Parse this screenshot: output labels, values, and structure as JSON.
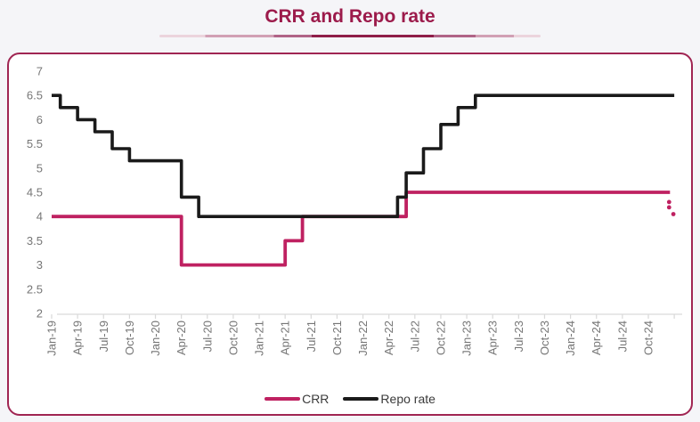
{
  "page": {
    "title": "CRR and Repo rate"
  },
  "colors": {
    "accent": "#9c1b4b",
    "card_border": "#a02552",
    "card_background": "#ffffff",
    "background": "#f5f5f8",
    "crr_line": "#bf2161",
    "repo_line": "#1a1a1a",
    "axis_text": "#767676",
    "axis_line": "#d9d9d9",
    "legend_text": "#3a3a3a"
  },
  "chart_data": {
    "type": "line",
    "title": "CRR and Repo rate",
    "x_axis": {
      "unit": "months since Jan-2019",
      "months_per_tick": 3,
      "label_rotation_deg": 90,
      "tick_labels": [
        "Jan-19",
        "Apr-19",
        "Jul-19",
        "Oct-19",
        "Jan-20",
        "Apr-20",
        "Jul-20",
        "Oct-20",
        "Jan-21",
        "Apr-21",
        "Jul-21",
        "Oct-21",
        "Jan-22",
        "Apr-22",
        "Jul-22",
        "Oct-22",
        "Jan-23",
        "Apr-23",
        "Jul-23",
        "Oct-23",
        "Jan-24",
        "Apr-24",
        "Jul-24",
        "Oct-24"
      ]
    },
    "y_axis": {
      "min": 2,
      "max": 7,
      "tick_step": 0.5,
      "ticks": [
        7,
        6.5,
        6,
        5.5,
        5,
        4.5,
        4,
        3.5,
        3,
        2.5,
        2
      ]
    },
    "series": [
      {
        "name": "CRR",
        "style": "step-after",
        "color_key": "crr_line",
        "end_m": 71.5,
        "points": [
          {
            "month": "Jan-19",
            "m": 0,
            "value": 4.0
          },
          {
            "month": "Apr-20",
            "m": 15,
            "value": 3.0
          },
          {
            "month": "Apr-21",
            "m": 27,
            "value": 3.5
          },
          {
            "month": "Jun-21",
            "m": 29,
            "value": 4.0
          },
          {
            "month": "Jun-22",
            "m": 41,
            "value": 4.5
          }
        ]
      },
      {
        "name": "Repo rate",
        "style": "step-after",
        "color_key": "repo_line",
        "end_m": 72,
        "points": [
          {
            "month": "Jan-19",
            "m": 0,
            "value": 6.5
          },
          {
            "month": "Feb-19",
            "m": 1,
            "value": 6.25
          },
          {
            "month": "Apr-19",
            "m": 3,
            "value": 6.0
          },
          {
            "month": "Jun-19",
            "m": 5,
            "value": 5.75
          },
          {
            "month": "Aug-19",
            "m": 7,
            "value": 5.4
          },
          {
            "month": "Oct-19",
            "m": 9,
            "value": 5.15
          },
          {
            "month": "Apr-20",
            "m": 15,
            "value": 4.4
          },
          {
            "month": "Jun-20",
            "m": 17,
            "value": 4.0
          },
          {
            "month": "May-22",
            "m": 40,
            "value": 4.4
          },
          {
            "month": "Jun-22",
            "m": 41,
            "value": 4.9
          },
          {
            "month": "Aug-22",
            "m": 43,
            "value": 5.4
          },
          {
            "month": "Oct-22",
            "m": 45,
            "value": 5.9
          },
          {
            "month": "Dec-22",
            "m": 47,
            "value": 6.25
          },
          {
            "month": "Feb-23",
            "m": 49,
            "value": 6.5
          }
        ]
      }
    ],
    "crr_dotted_tail": {
      "description": "dotted decline of CRR at series end (Dec-24 cut from 4.5 toward 4.0)",
      "dots": [
        {
          "m": 71.4,
          "value": 4.3
        },
        {
          "m": 71.4,
          "value": 4.19
        },
        {
          "m": 71.9,
          "value": 4.05
        }
      ]
    },
    "legend": {
      "position": "bottom-center",
      "entries": [
        {
          "label": "CRR",
          "color_key": "crr_line"
        },
        {
          "label": "Repo rate",
          "color_key": "repo_line"
        }
      ]
    },
    "grid": "off"
  }
}
